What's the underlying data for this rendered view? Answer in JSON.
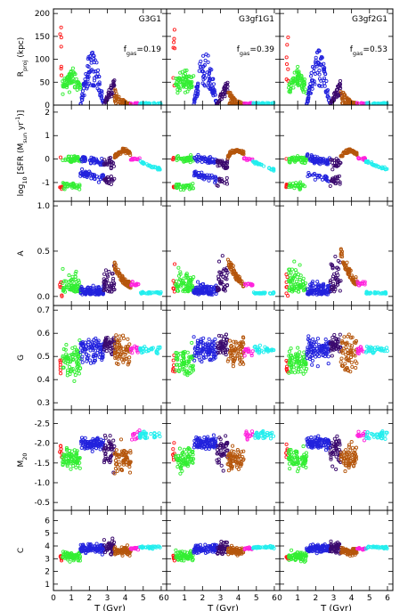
{
  "chart_data": {
    "type": "scatter",
    "panel_titles": [
      "G3G1",
      "G3gf1G1",
      "G3gf2G1"
    ],
    "fgas_labels": [
      {
        "prefix": "f",
        "sub": "gas",
        "value": "=0.19"
      },
      {
        "prefix": "f",
        "sub": "gas",
        "value": "=0.39"
      },
      {
        "prefix": "f",
        "sub": "gas",
        "value": "=0.53"
      }
    ],
    "xlabel": "T (Gyr)",
    "xlim": [
      0,
      6.3
    ],
    "xticks": [
      "0",
      "1",
      "2",
      "3",
      "4",
      "5",
      "6"
    ],
    "phase_colors": [
      "#ff1a1a",
      "#33ee33",
      "#2222dd",
      "#3b0a6e",
      "#b5560c",
      "#ff22dd",
      "#22eeee"
    ],
    "phase_ranges": [
      [
        0.0,
        0.5
      ],
      [
        0.5,
        1.5
      ],
      [
        1.5,
        2.8
      ],
      [
        2.8,
        3.4
      ],
      [
        3.4,
        4.3
      ],
      [
        4.3,
        4.8
      ],
      [
        4.8,
        6.0
      ]
    ],
    "rows": [
      {
        "ylabel": {
          "main": "R",
          "sub": "proj",
          "rest": " (kpc)"
        },
        "ylim": [
          0,
          210
        ],
        "yticks": [
          0,
          50,
          100,
          150,
          200
        ],
        "ytick_labels": [
          "0",
          "50",
          "100",
          "150",
          "200"
        ]
      },
      {
        "ylabel": {
          "pre": "log",
          "sub": "10",
          "mid": " [SFR (M",
          "sub2": "sun",
          "post": " yr",
          "sup": "-1",
          "end": ")]"
        },
        "ylim": [
          -1.8,
          2.3
        ],
        "yticks": [
          -1,
          0,
          1,
          2
        ],
        "ytick_labels": [
          "-1",
          "0",
          "1",
          "2"
        ]
      },
      {
        "ylabel": {
          "main": "A"
        },
        "ylim": [
          -0.1,
          1.05
        ],
        "yticks": [
          0.0,
          0.5,
          1.0
        ],
        "ytick_labels": [
          "0.0",
          "0.5",
          "1.0"
        ]
      },
      {
        "ylabel": {
          "main": "G"
        },
        "ylim": [
          0.27,
          0.72
        ],
        "yticks": [
          0.3,
          0.4,
          0.5,
          0.6,
          0.7
        ],
        "ytick_labels": [
          "0.3",
          "0.4",
          "0.5",
          "0.6",
          "0.7"
        ]
      },
      {
        "ylabel": {
          "main": "M",
          "sub": "20"
        },
        "ylim": [
          -2.85,
          -0.3
        ],
        "invert": true,
        "yticks": [
          -0.5,
          -1.0,
          -1.5,
          -2.0,
          -2.5
        ],
        "ytick_labels": [
          "-0.5",
          "-1.0",
          "-1.5",
          "-2.0",
          "-2.5"
        ]
      },
      {
        "ylabel": {
          "main": "C"
        },
        "ylim": [
          0.5,
          6.8
        ],
        "yticks": [
          1,
          2,
          3,
          4,
          5,
          6
        ],
        "ytick_labels": [
          "1",
          "2",
          "3",
          "4",
          "5",
          "6"
        ]
      }
    ]
  }
}
